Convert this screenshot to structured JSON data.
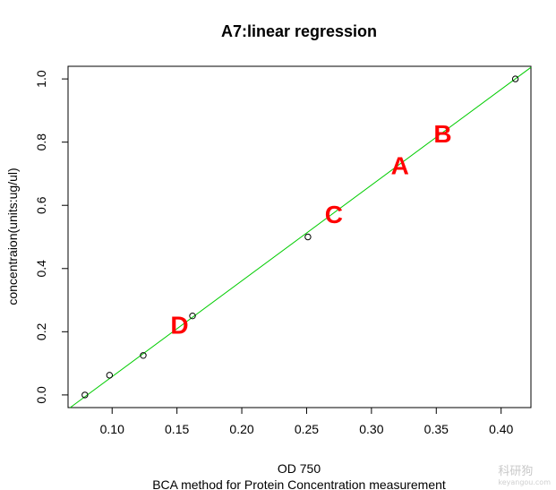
{
  "chart_data": {
    "type": "scatter",
    "title": "A7:linear regression",
    "xlabel": "OD 750",
    "subtitle": "BCA method for Protein Concentration measurement",
    "ylabel": "concentraion(units:ug/ul)",
    "xlim": [
      0.066,
      0.423
    ],
    "ylim": [
      -0.04,
      1.04
    ],
    "x_ticks": [
      0.1,
      0.15,
      0.2,
      0.25,
      0.3,
      0.35,
      0.4
    ],
    "x_tick_labels": [
      "0.10",
      "0.15",
      "0.20",
      "0.25",
      "0.30",
      "0.35",
      "0.40"
    ],
    "y_ticks": [
      0.0,
      0.2,
      0.4,
      0.6,
      0.8,
      1.0
    ],
    "y_tick_labels": [
      "0.0",
      "0.2",
      "0.4",
      "0.6",
      "0.8",
      "1.0"
    ],
    "points": [
      {
        "x": 0.079,
        "y": 0.0
      },
      {
        "x": 0.098,
        "y": 0.0625
      },
      {
        "x": 0.124,
        "y": 0.125
      },
      {
        "x": 0.162,
        "y": 0.25
      },
      {
        "x": 0.251,
        "y": 0.5
      },
      {
        "x": 0.411,
        "y": 1.0
      }
    ],
    "regression_line": {
      "slope": 3.03,
      "intercept": -0.245,
      "color": "#00cc00"
    },
    "annotations": [
      {
        "text": "A",
        "x": 0.322,
        "y": 0.72,
        "color": "#ff0000"
      },
      {
        "text": "B",
        "x": 0.355,
        "y": 0.82,
        "color": "#ff0000"
      },
      {
        "text": "C",
        "x": 0.271,
        "y": 0.565,
        "color": "#ff0000"
      },
      {
        "text": "D",
        "x": 0.152,
        "y": 0.215,
        "color": "#ff0000"
      }
    ],
    "grid": false,
    "legend": "none"
  },
  "watermark": {
    "main": "科研狗",
    "sub": "keyangou.com"
  }
}
